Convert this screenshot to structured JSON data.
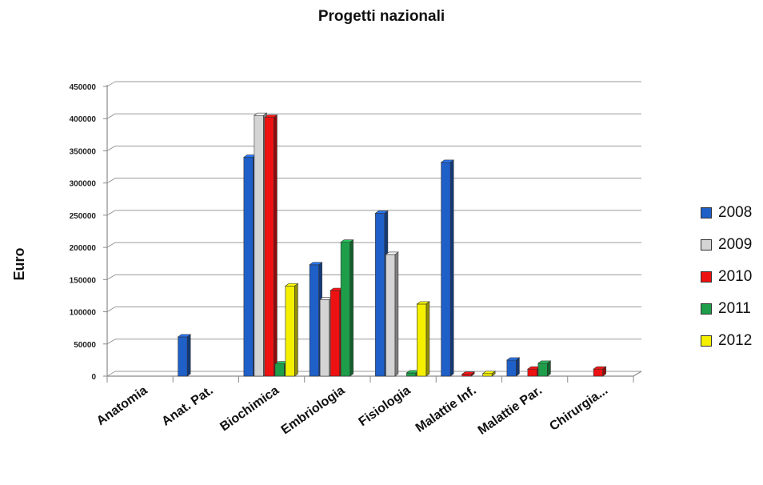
{
  "chart_data": {
    "type": "bar",
    "title": "Progetti nazionali",
    "xlabel": "",
    "ylabel": "Euro",
    "ylim": [
      0,
      450000
    ],
    "yticks": [
      0,
      50000,
      100000,
      150000,
      200000,
      250000,
      300000,
      350000,
      400000,
      450000
    ],
    "grid": true,
    "legend_position": "right",
    "categories": [
      "Anatomia",
      "Anat. Pat.",
      "Biochimica",
      "Embriologia",
      "Fisiologia",
      "Malattie Inf.",
      "Malattie Par.",
      "Chirurgia..."
    ],
    "series": [
      {
        "name": "2008",
        "color": "#1f5fc8",
        "values": [
          0,
          61000,
          340000,
          173000,
          253000,
          332000,
          25000,
          0
        ]
      },
      {
        "name": "2009",
        "color": "#d4d4d4",
        "values": [
          0,
          0,
          405000,
          119000,
          189000,
          0,
          0,
          0
        ]
      },
      {
        "name": "2010",
        "color": "#ee1111",
        "values": [
          0,
          0,
          402000,
          133000,
          0,
          3000,
          11000,
          11000
        ]
      },
      {
        "name": "2011",
        "color": "#1e9e4a",
        "values": [
          0,
          0,
          19000,
          208000,
          5000,
          0,
          20000,
          0
        ]
      },
      {
        "name": "2012",
        "color": "#f5f000",
        "values": [
          0,
          0,
          140000,
          0,
          112000,
          4000,
          0,
          0
        ]
      }
    ]
  }
}
